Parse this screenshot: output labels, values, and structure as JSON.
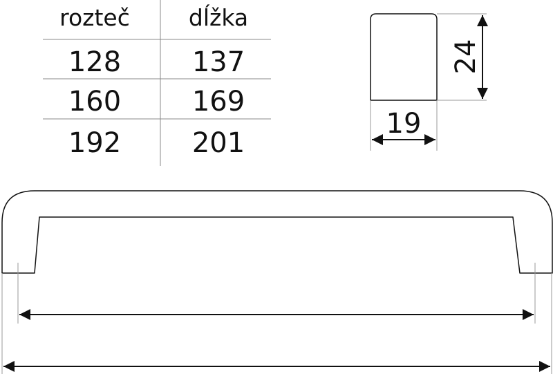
{
  "table": {
    "headers": [
      "rozteč",
      "dĺžka"
    ],
    "rows": [
      [
        "128",
        "137"
      ],
      [
        "160",
        "169"
      ],
      [
        "192",
        "201"
      ]
    ]
  },
  "cross_section": {
    "height_label": "24",
    "width_label": "19"
  },
  "colors": {
    "line": "#111111",
    "extension_line": "#999999"
  }
}
